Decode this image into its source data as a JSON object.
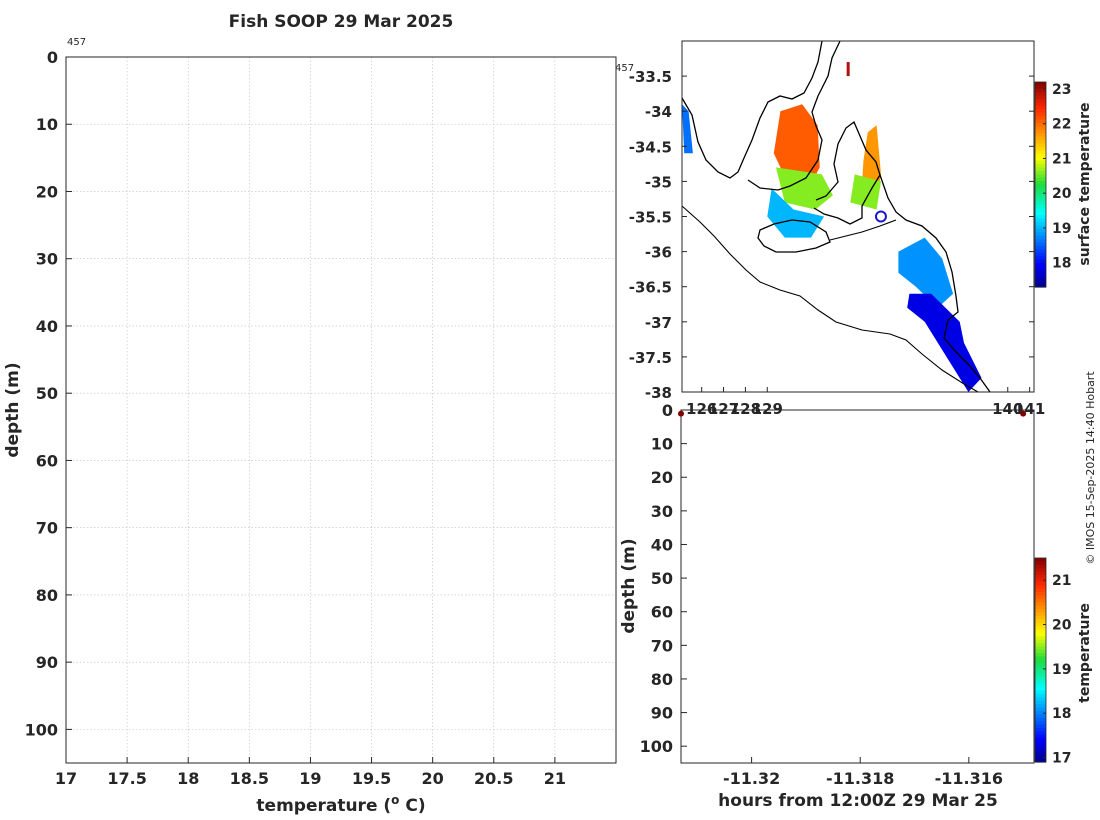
{
  "title": "Fish SOOP 29 Mar 2025",
  "credit": "© IMOS 15-Sep-2025 14:40 Hobart",
  "colors": {
    "axis": "#262626",
    "grid": "#bfbfbf",
    "coast": "#000000",
    "marker_ring": "#1a1acc",
    "dot": "#b01010"
  },
  "chart_data": [
    {
      "type": "scatter",
      "name": "profile",
      "xlabel": "temperature (",
      "xlabel_sup": "o",
      "xlabel_tail": " C)",
      "ylabel": "depth (m)",
      "xlim": [
        17,
        21.5
      ],
      "ylim": [
        0,
        105
      ],
      "y_reversed": true,
      "xticks": [
        17,
        17.5,
        18,
        18.5,
        19,
        19.5,
        20,
        20.5,
        21
      ],
      "xticklabels": [
        "17",
        "17.5",
        "18",
        "18.5",
        "19",
        "19.5",
        "20",
        "20.5",
        "21"
      ],
      "yticks": [
        0,
        10,
        20,
        30,
        40,
        50,
        60,
        70,
        80,
        90,
        100
      ],
      "yticklabels": [
        "0",
        "10",
        "20",
        "30",
        "40",
        "50",
        "60",
        "70",
        "80",
        "90",
        "100"
      ],
      "grid": true,
      "annotation": "457",
      "points": []
    },
    {
      "type": "heatmap",
      "name": "map",
      "xlim": [
        125.1,
        141.2
      ],
      "ylim": [
        -38,
        -33
      ],
      "xticks": [
        126,
        127,
        128,
        129,
        140,
        141
      ],
      "xticklabels": [
        "126",
        "127",
        "128",
        "129",
        "140",
        "141"
      ],
      "yticks": [
        -33.5,
        -34,
        -34.5,
        -35,
        -35.5,
        -36,
        -36.5,
        -37,
        -37.5,
        -38
      ],
      "yticklabels": [
        "-33.5",
        "-34",
        "-34.5",
        "-35",
        "-35.5",
        "-36",
        "-36.5",
        "-37",
        "-37.5",
        "-38"
      ],
      "annotation": "457",
      "colorbar": {
        "label": "surface temperature",
        "range": [
          17.3,
          23.2
        ],
        "ticks": [
          "18",
          "19",
          "20",
          "21",
          "22",
          "23"
        ],
        "colormap": "jet"
      },
      "regions": [
        {
          "name": "gulf-north",
          "temp": 22.1,
          "points": [
            [
              129.6,
              -34.0
            ],
            [
              130.6,
              -33.9
            ],
            [
              131.3,
              -34.2
            ],
            [
              131.4,
              -34.8
            ],
            [
              130.9,
              -35.1
            ],
            [
              129.9,
              -35.0
            ],
            [
              129.3,
              -34.6
            ]
          ]
        },
        {
          "name": "gulf-middle",
          "temp": 20.6,
          "points": [
            [
              129.4,
              -34.8
            ],
            [
              131.5,
              -34.9
            ],
            [
              132.0,
              -35.2
            ],
            [
              131.2,
              -35.4
            ],
            [
              129.8,
              -35.3
            ]
          ]
        },
        {
          "name": "gulf-mouth",
          "temp": 19.0,
          "points": [
            [
              129.2,
              -35.1
            ],
            [
              130.2,
              -35.4
            ],
            [
              131.6,
              -35.5
            ],
            [
              131.0,
              -35.8
            ],
            [
              129.8,
              -35.8
            ],
            [
              129.0,
              -35.5
            ]
          ]
        },
        {
          "name": "gulf-east",
          "temp": 21.7,
          "points": [
            [
              133.6,
              -34.3
            ],
            [
              134.0,
              -34.2
            ],
            [
              134.2,
              -34.9
            ],
            [
              133.9,
              -35.4
            ],
            [
              133.3,
              -35.2
            ],
            [
              133.4,
              -34.7
            ]
          ]
        },
        {
          "name": "gulf-east-south",
          "temp": 20.6,
          "points": [
            [
              133.0,
              -34.9
            ],
            [
              134.2,
              -35.0
            ],
            [
              134.0,
              -35.4
            ],
            [
              132.8,
              -35.3
            ]
          ]
        },
        {
          "name": "shelf-upper",
          "temp": 18.8,
          "points": [
            [
              135.0,
              -36.0
            ],
            [
              136.2,
              -35.8
            ],
            [
              137.0,
              -36.1
            ],
            [
              137.5,
              -36.6
            ],
            [
              136.8,
              -36.8
            ],
            [
              135.8,
              -36.5
            ],
            [
              135.0,
              -36.3
            ]
          ]
        },
        {
          "name": "shelf-lower",
          "temp": 17.8,
          "points": [
            [
              135.5,
              -36.6
            ],
            [
              136.5,
              -36.6
            ],
            [
              137.8,
              -37.0
            ],
            [
              138.0,
              -37.3
            ],
            [
              138.8,
              -37.8
            ],
            [
              138.2,
              -38.0
            ],
            [
              137.4,
              -37.6
            ],
            [
              136.2,
              -37.0
            ],
            [
              135.4,
              -36.8
            ]
          ]
        },
        {
          "name": "west-strip",
          "temp": 18.6,
          "points": [
            [
              125.1,
              -33.9
            ],
            [
              125.4,
              -34.0
            ],
            [
              125.6,
              -34.6
            ],
            [
              125.2,
              -34.6
            ]
          ]
        }
      ],
      "track_marker": {
        "lon": 134.2,
        "lat": -35.5
      },
      "source_segment": {
        "lon": [
          132.7,
          132.7
        ],
        "lat": [
          -33.3,
          -33.5
        ]
      }
    },
    {
      "type": "heatmap",
      "name": "section",
      "xlabel": "hours from 12:00Z 29 Mar 25",
      "ylabel": "depth (m)",
      "xlim": [
        -11.3213,
        -11.3148
      ],
      "ylim": [
        0,
        105
      ],
      "y_reversed": true,
      "xticks": [
        -11.32,
        -11.318,
        -11.316
      ],
      "xticklabels": [
        "-11.32",
        "-11.318",
        "-11.316"
      ],
      "yticks": [
        0,
        10,
        20,
        30,
        40,
        50,
        60,
        70,
        80,
        90,
        100
      ],
      "yticklabels": [
        "0",
        "10",
        "20",
        "30",
        "40",
        "50",
        "60",
        "70",
        "80",
        "90",
        "100"
      ],
      "colorbar": {
        "label": "temperature",
        "range": [
          16.9,
          21.5
        ],
        "ticks": [
          "17",
          "18",
          "19",
          "20",
          "21"
        ],
        "colormap": "jet"
      },
      "points": [
        {
          "x": -11.3213,
          "depth": 0.5,
          "temp": 21.5
        },
        {
          "x": -11.315,
          "depth": 0.5,
          "temp": 21.5
        }
      ]
    }
  ]
}
